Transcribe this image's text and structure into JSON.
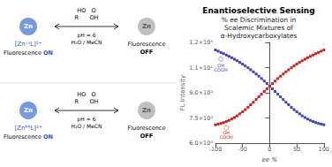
{
  "chart_data": {
    "type": "line",
    "title": "Enantioselective Sensing",
    "subtitle": "% ee Discrimination in\nScalemic Mixtures of\nα-Hydroxycarboxylates",
    "xlabel": "ee %",
    "ylabel": "FL Intensity",
    "x": [
      -100,
      -95,
      -90,
      -85,
      -80,
      -75,
      -70,
      -65,
      -60,
      -55,
      -50,
      -45,
      -40,
      -35,
      -30,
      -25,
      -20,
      -15,
      -10,
      -5,
      0,
      5,
      10,
      15,
      20,
      25,
      30,
      35,
      40,
      45,
      50,
      55,
      60,
      65,
      70,
      75,
      80,
      85,
      90,
      95,
      100
    ],
    "series": [
      {
        "color": "#4444bb",
        "line_style": "dashed",
        "marker": "square",
        "values": [
          115500,
          114800,
          114000,
          113300,
          112500,
          111700,
          110900,
          110000,
          109100,
          108100,
          107100,
          106000,
          104900,
          103700,
          102500,
          101200,
          99900,
          98500,
          97000,
          95500,
          94000,
          92400,
          90800,
          89200,
          87600,
          86000,
          84400,
          82900,
          81400,
          80000,
          78700,
          77500,
          76300,
          75300,
          74400,
          73600,
          72900,
          72300,
          71800,
          71400,
          71000
        ]
      },
      {
        "color": "#cc2222",
        "line_style": "dashed",
        "marker": "square",
        "values": [
          71000,
          71400,
          71800,
          72300,
          72900,
          73600,
          74400,
          75300,
          76300,
          77500,
          78700,
          80000,
          81400,
          82900,
          84400,
          86000,
          87600,
          89200,
          90800,
          92400,
          94000,
          95500,
          97000,
          98500,
          99900,
          101200,
          102500,
          103700,
          104900,
          106000,
          107100,
          108100,
          109100,
          110000,
          110900,
          111700,
          112500,
          113300,
          114000,
          114800,
          115500
        ]
      }
    ],
    "xlim": [
      -100,
      100
    ],
    "xticks": [
      -100,
      -50,
      0,
      50,
      100
    ],
    "ylim": [
      60000,
      120000
    ],
    "yticks": [
      {
        "value": 60000,
        "label": "6.0×10⁴"
      },
      {
        "value": 75000,
        "label": "7.5×10⁴"
      },
      {
        "value": 90000,
        "label": "9.0×10⁴"
      },
      {
        "value": 105000,
        "label": "1.1×10⁵"
      },
      {
        "value": 120000,
        "label": "1.2×10⁵"
      }
    ],
    "grid": false,
    "annotations": [
      {
        "text": "⬡",
        "x": -90,
        "y": 110000,
        "color": "#4444bb"
      },
      {
        "text": "OH\nCOOH",
        "x": -90,
        "y": 105000,
        "color": "#4444bb"
      },
      {
        "text": "⬡",
        "x": -80,
        "y": 69000,
        "color": "#cc2222"
      },
      {
        "text": "OH\nCOOH",
        "x": -80,
        "y": 65000,
        "color": "#cc2222"
      }
    ],
    "scheme": [
      {
        "complex": "[ZnˢˢL]²⁺",
        "metal": "Zn",
        "reagent": [
          "HO   O",
          "R      OH"
        ],
        "conditions": [
          "pH = 6",
          "H₂O / MeCN"
        ],
        "on": [
          "Fluorescence",
          "ON"
        ],
        "off": [
          "Fluorescence",
          "OFF"
        ],
        "color": "#3355cc",
        "on_color": "#7799dd",
        "off_color": "#c0c0c0"
      },
      {
        "complex": "[ZnᴿᴿL]²⁺",
        "metal": "Zn",
        "reagent": [
          "HO   O",
          "R      OH"
        ],
        "conditions": [
          "pH = 6",
          "H₂O / MeCN"
        ],
        "on": [
          "Fluorescence",
          "ON"
        ],
        "off": [
          "Fluorescence",
          "OFF"
        ],
        "color": "#3355cc",
        "on_color": "#7799dd",
        "off_color": "#c0c0c0"
      }
    ]
  }
}
